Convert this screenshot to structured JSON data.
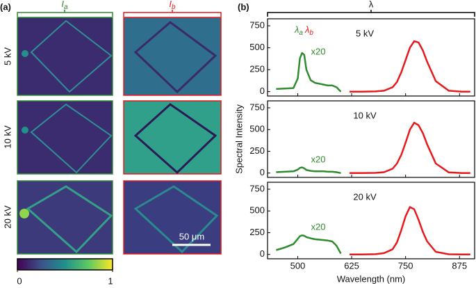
{
  "panel_a": {
    "label": "(a)",
    "column_labels": [
      {
        "symbol": "I",
        "subscript": "a"
      },
      {
        "symbol": "I",
        "subscript": "b"
      }
    ],
    "row_labels": [
      "5 kV",
      "10 kV",
      "20 kV"
    ],
    "scale_bar": "50 μm",
    "colorbar": {
      "ticks": [
        0,
        1
      ]
    }
  },
  "panel_b": {
    "label": "(b)",
    "bracket_label": "λ"
  },
  "chart_data": [
    {
      "type": "line",
      "title": "5 kV",
      "scale_note": "x20",
      "peak_labels": [
        {
          "symbol": "λ",
          "subscript": "a"
        },
        {
          "symbol": "λ",
          "subscript": "b"
        }
      ],
      "x": [
        450,
        470,
        490,
        500,
        505,
        510,
        515,
        520,
        530,
        540,
        550,
        560,
        570,
        580,
        590,
        600,
        620,
        650,
        680,
        700,
        720,
        730,
        740,
        750,
        760,
        770,
        780,
        790,
        800,
        820,
        850,
        880,
        900
      ],
      "series": [
        {
          "name": "green",
          "color": "#2e8b2e",
          "values": [
            30,
            35,
            40,
            150,
            380,
            440,
            420,
            250,
            130,
            100,
            90,
            80,
            70,
            70,
            50,
            0,
            null,
            null,
            null,
            null,
            null,
            null,
            null,
            null,
            null,
            null,
            null,
            null,
            null,
            null,
            null,
            null,
            null
          ]
        },
        {
          "name": "red",
          "color": "#e8191b",
          "values": [
            null,
            null,
            null,
            null,
            null,
            null,
            null,
            null,
            null,
            null,
            null,
            null,
            null,
            null,
            null,
            null,
            0,
            0,
            2,
            10,
            50,
            110,
            220,
            360,
            500,
            575,
            560,
            470,
            340,
            120,
            10,
            0,
            0
          ]
        }
      ],
      "xlim": [
        430,
        910
      ],
      "ylim": [
        -50,
        830
      ],
      "xticks": [
        500,
        625,
        750,
        875
      ],
      "yticks": [
        0,
        250,
        500,
        750
      ]
    },
    {
      "type": "line",
      "title": "10 kV",
      "scale_note": "x20",
      "ylabel": "Spectral Intensity",
      "x": [
        450,
        470,
        490,
        500,
        505,
        510,
        515,
        520,
        530,
        540,
        550,
        560,
        570,
        580,
        590,
        600,
        620,
        650,
        680,
        700,
        720,
        730,
        740,
        750,
        760,
        770,
        780,
        790,
        800,
        820,
        850,
        880,
        900
      ],
      "series": [
        {
          "name": "green",
          "color": "#2e8b2e",
          "values": [
            10,
            15,
            20,
            40,
            60,
            65,
            55,
            35,
            25,
            20,
            20,
            20,
            15,
            15,
            10,
            0,
            null,
            null,
            null,
            null,
            null,
            null,
            null,
            null,
            null,
            null,
            null,
            null,
            null,
            null,
            null,
            null,
            null
          ]
        },
        {
          "name": "red",
          "color": "#e8191b",
          "values": [
            null,
            null,
            null,
            null,
            null,
            null,
            null,
            null,
            null,
            null,
            null,
            null,
            null,
            null,
            null,
            null,
            0,
            0,
            2,
            10,
            50,
            110,
            210,
            350,
            500,
            580,
            550,
            460,
            330,
            110,
            8,
            0,
            0
          ]
        }
      ],
      "xlim": [
        430,
        910
      ],
      "ylim": [
        -50,
        830
      ],
      "xticks": [
        500,
        625,
        750,
        875
      ],
      "yticks": [
        0,
        250,
        500,
        750
      ]
    },
    {
      "type": "line",
      "title": "20 kV",
      "scale_note": "x20",
      "xlabel": "Wavelength (nm)",
      "x": [
        450,
        470,
        490,
        500,
        505,
        510,
        515,
        520,
        530,
        540,
        550,
        560,
        570,
        580,
        590,
        600,
        620,
        650,
        680,
        700,
        720,
        730,
        740,
        750,
        760,
        770,
        780,
        790,
        800,
        820,
        850,
        880,
        900
      ],
      "series": [
        {
          "name": "green",
          "color": "#2e8b2e",
          "values": [
            50,
            80,
            120,
            180,
            210,
            220,
            215,
            200,
            185,
            175,
            170,
            165,
            160,
            150,
            100,
            10,
            null,
            null,
            null,
            null,
            null,
            null,
            null,
            null,
            null,
            null,
            null,
            null,
            null,
            null,
            null,
            null,
            null
          ]
        },
        {
          "name": "red",
          "color": "#e8191b",
          "values": [
            null,
            null,
            null,
            null,
            null,
            null,
            null,
            null,
            null,
            null,
            null,
            null,
            null,
            null,
            null,
            null,
            0,
            0,
            3,
            15,
            60,
            140,
            280,
            440,
            545,
            520,
            400,
            260,
            150,
            30,
            2,
            0,
            0
          ]
        }
      ],
      "xlim": [
        430,
        910
      ],
      "ylim": [
        -50,
        830
      ],
      "xticks": [
        500,
        625,
        750,
        875
      ],
      "yticks": [
        0,
        250,
        500,
        750
      ]
    }
  ]
}
